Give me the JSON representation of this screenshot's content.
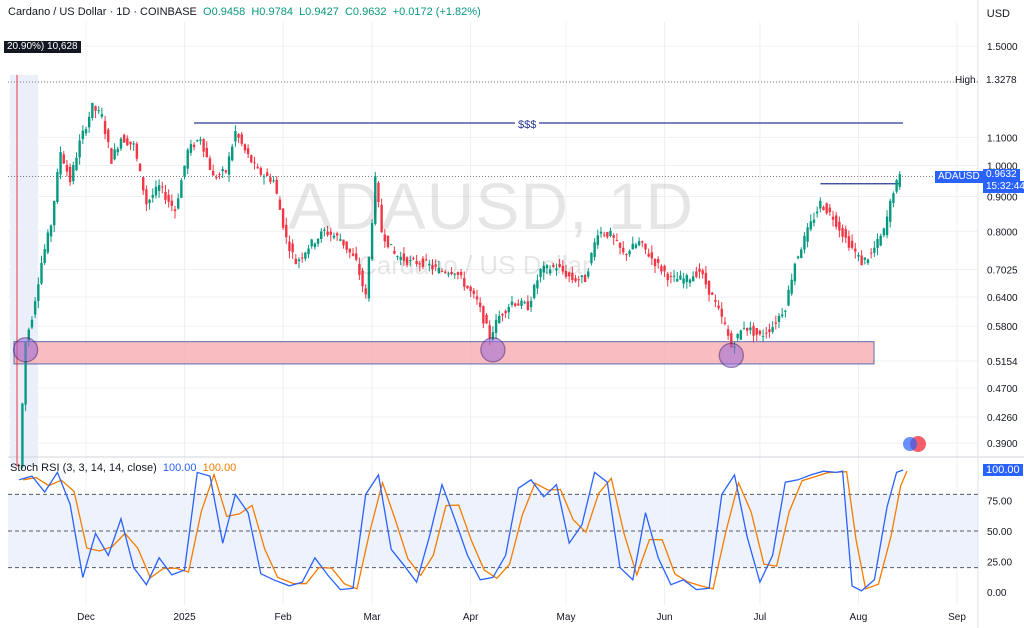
{
  "legend": {
    "symbol": "Cardano / US Dollar · 1D · COINBASE",
    "o": "O0.9458",
    "h": "H0.9784",
    "l": "L0.9427",
    "c": "C0.9632",
    "chg": "+0.0172 (+1.82%)"
  },
  "currency": "USD",
  "measure_label": "20.90%) 10,628",
  "watermark": {
    "ticker": "ADAUSD, 1D",
    "name": "Cardano / US Dollar"
  },
  "annotations": {
    "liquidity": "$$$",
    "high_label": "High",
    "high_value": "1.3278"
  },
  "price_tag": {
    "ticker": "ADAUSD",
    "price": "0.9632",
    "countdown": "15:32:44"
  },
  "rsi": {
    "label": "Stoch RSI (3, 3, 14, 14, close)",
    "k": "100.00",
    "d": "100.00",
    "tag": "100.00"
  },
  "colors": {
    "up": "#089981",
    "down": "#f23645",
    "k_line": "#2962ff",
    "d_line": "#f57c00",
    "zone": "#f7a8ad"
  },
  "chart_data": {
    "type": "candlestick",
    "y_scale": "log",
    "y_ticks": [
      "1.5000",
      "1.3278",
      "1.1000",
      "1.0000",
      "0.9000",
      "0.8000",
      "0.7025",
      "0.6400",
      "0.5800",
      "0.5154",
      "0.4700",
      "0.4260",
      "0.3900"
    ],
    "x_ticks": [
      "Dec",
      "2025",
      "Feb",
      "Mar",
      "Apr",
      "May",
      "Jun",
      "Jul",
      "Aug",
      "Sep"
    ],
    "x_tick_dates": [
      "2024-12-01",
      "2025-01-01",
      "2025-02-01",
      "2025-03-01",
      "2025-04-01",
      "2025-05-01",
      "2025-06-01",
      "2025-07-01",
      "2025-08-01",
      "2025-09-01"
    ],
    "demand_zone": [
      0.51,
      0.55
    ],
    "liquidity_level": 1.155,
    "high_level": 1.3278,
    "resistance_level": 0.94,
    "last_price": 0.9632,
    "close_path": [
      [
        "2024-11-10",
        0.36
      ],
      [
        "2024-11-12",
        0.55
      ],
      [
        "2024-11-14",
        0.6
      ],
      [
        "2024-11-17",
        0.72
      ],
      [
        "2024-11-20",
        0.82
      ],
      [
        "2024-11-23",
        1.05
      ],
      [
        "2024-11-26",
        0.95
      ],
      [
        "2024-11-29",
        1.08
      ],
      [
        "2024-12-03",
        1.22
      ],
      [
        "2024-12-06",
        1.18
      ],
      [
        "2024-12-09",
        1.02
      ],
      [
        "2024-12-12",
        1.1
      ],
      [
        "2024-12-16",
        1.07
      ],
      [
        "2024-12-20",
        0.88
      ],
      [
        "2024-12-24",
        0.93
      ],
      [
        "2024-12-29",
        0.86
      ],
      [
        "2025-01-02",
        1.05
      ],
      [
        "2025-01-06",
        1.1
      ],
      [
        "2025-01-10",
        0.96
      ],
      [
        "2025-01-14",
        0.98
      ],
      [
        "2025-01-17",
        1.12
      ],
      [
        "2025-01-20",
        1.05
      ],
      [
        "2025-01-24",
        0.98
      ],
      [
        "2025-01-29",
        0.95
      ],
      [
        "2025-02-02",
        0.78
      ],
      [
        "2025-02-05",
        0.72
      ],
      [
        "2025-02-09",
        0.76
      ],
      [
        "2025-02-14",
        0.8
      ],
      [
        "2025-02-19",
        0.78
      ],
      [
        "2025-02-24",
        0.72
      ],
      [
        "2025-02-27",
        0.64
      ],
      [
        "2025-03-02",
        0.95
      ],
      [
        "2025-03-04",
        0.8
      ],
      [
        "2025-03-08",
        0.74
      ],
      [
        "2025-03-13",
        0.72
      ],
      [
        "2025-03-17",
        0.72
      ],
      [
        "2025-03-22",
        0.7
      ],
      [
        "2025-03-27",
        0.7
      ],
      [
        "2025-03-31",
        0.66
      ],
      [
        "2025-04-03",
        0.63
      ],
      [
        "2025-04-07",
        0.56
      ],
      [
        "2025-04-10",
        0.6
      ],
      [
        "2025-04-14",
        0.63
      ],
      [
        "2025-04-19",
        0.62
      ],
      [
        "2025-04-23",
        0.7
      ],
      [
        "2025-04-28",
        0.71
      ],
      [
        "2025-05-03",
        0.68
      ],
      [
        "2025-05-07",
        0.68
      ],
      [
        "2025-05-11",
        0.8
      ],
      [
        "2025-05-15",
        0.79
      ],
      [
        "2025-05-19",
        0.74
      ],
      [
        "2025-05-24",
        0.77
      ],
      [
        "2025-05-29",
        0.72
      ],
      [
        "2025-06-03",
        0.68
      ],
      [
        "2025-06-08",
        0.68
      ],
      [
        "2025-06-12",
        0.7
      ],
      [
        "2025-06-16",
        0.64
      ],
      [
        "2025-06-20",
        0.58
      ],
      [
        "2025-06-22",
        0.54
      ],
      [
        "2025-06-26",
        0.58
      ],
      [
        "2025-07-01",
        0.56
      ],
      [
        "2025-07-05",
        0.58
      ],
      [
        "2025-07-09",
        0.62
      ],
      [
        "2025-07-12",
        0.72
      ],
      [
        "2025-07-16",
        0.8
      ],
      [
        "2025-07-20",
        0.88
      ],
      [
        "2025-07-24",
        0.84
      ],
      [
        "2025-07-28",
        0.78
      ],
      [
        "2025-08-02",
        0.72
      ],
      [
        "2025-08-05",
        0.74
      ],
      [
        "2025-08-09",
        0.8
      ],
      [
        "2025-08-12",
        0.92
      ],
      [
        "2025-08-14",
        0.96
      ]
    ],
    "stoch_rsi": {
      "y_ticks": [
        "100.00",
        "75.00",
        "50.00",
        "25.00",
        "0.00"
      ],
      "bands": [
        20,
        80
      ],
      "k_path": [
        [
          "2024-11-10",
          92
        ],
        [
          "2024-11-14",
          95
        ],
        [
          "2024-11-18",
          82
        ],
        [
          "2024-11-22",
          98
        ],
        [
          "2024-11-26",
          72
        ],
        [
          "2024-11-30",
          12
        ],
        [
          "2024-12-04",
          48
        ],
        [
          "2024-12-08",
          30
        ],
        [
          "2024-12-12",
          60
        ],
        [
          "2024-12-16",
          20
        ],
        [
          "2024-12-20",
          6
        ],
        [
          "2024-12-24",
          28
        ],
        [
          "2024-12-28",
          14
        ],
        [
          "2025-01-01",
          18
        ],
        [
          "2025-01-05",
          98
        ],
        [
          "2025-01-09",
          95
        ],
        [
          "2025-01-13",
          40
        ],
        [
          "2025-01-17",
          80
        ],
        [
          "2025-01-21",
          65
        ],
        [
          "2025-01-25",
          15
        ],
        [
          "2025-01-29",
          10
        ],
        [
          "2025-02-03",
          5
        ],
        [
          "2025-02-07",
          8
        ],
        [
          "2025-02-11",
          28
        ],
        [
          "2025-02-15",
          14
        ],
        [
          "2025-02-19",
          2
        ],
        [
          "2025-02-23",
          3
        ],
        [
          "2025-02-27",
          80
        ],
        [
          "2025-03-03",
          96
        ],
        [
          "2025-03-07",
          35
        ],
        [
          "2025-03-11",
          22
        ],
        [
          "2025-03-15",
          8
        ],
        [
          "2025-03-19",
          45
        ],
        [
          "2025-03-23",
          88
        ],
        [
          "2025-03-27",
          60
        ],
        [
          "2025-03-31",
          30
        ],
        [
          "2025-04-04",
          10
        ],
        [
          "2025-04-08",
          12
        ],
        [
          "2025-04-12",
          30
        ],
        [
          "2025-04-16",
          85
        ],
        [
          "2025-04-20",
          92
        ],
        [
          "2025-04-24",
          78
        ],
        [
          "2025-04-28",
          88
        ],
        [
          "2025-05-02",
          40
        ],
        [
          "2025-05-06",
          55
        ],
        [
          "2025-05-10",
          98
        ],
        [
          "2025-05-14",
          90
        ],
        [
          "2025-05-18",
          20
        ],
        [
          "2025-05-22",
          10
        ],
        [
          "2025-05-26",
          65
        ],
        [
          "2025-05-30",
          28
        ],
        [
          "2025-06-03",
          6
        ],
        [
          "2025-06-07",
          10
        ],
        [
          "2025-06-11",
          2
        ],
        [
          "2025-06-15",
          3
        ],
        [
          "2025-06-19",
          80
        ],
        [
          "2025-06-23",
          96
        ],
        [
          "2025-06-27",
          45
        ],
        [
          "2025-07-01",
          8
        ],
        [
          "2025-07-05",
          30
        ],
        [
          "2025-07-09",
          90
        ],
        [
          "2025-07-13",
          92
        ],
        [
          "2025-07-17",
          96
        ],
        [
          "2025-07-21",
          99
        ],
        [
          "2025-07-25",
          98
        ],
        [
          "2025-07-27",
          99
        ],
        [
          "2025-07-30",
          5
        ],
        [
          "2025-08-02",
          1
        ],
        [
          "2025-08-06",
          10
        ],
        [
          "2025-08-10",
          70
        ],
        [
          "2025-08-13",
          98
        ],
        [
          "2025-08-15",
          100
        ]
      ]
    }
  }
}
